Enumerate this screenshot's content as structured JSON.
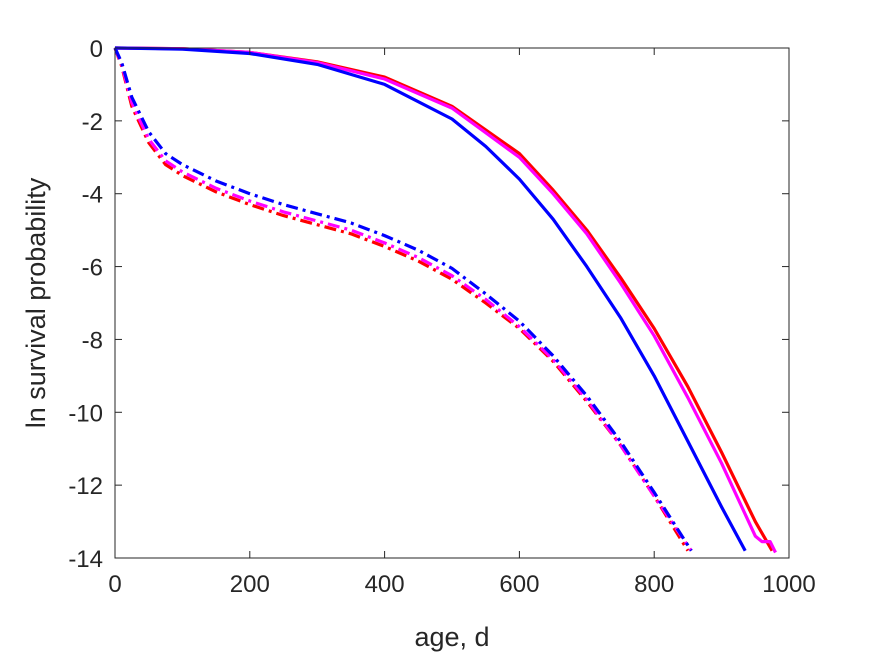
{
  "chart_data": {
    "type": "line",
    "xlabel": "age, d",
    "ylabel": "ln survival probability",
    "xlim": [
      0,
      1000
    ],
    "ylim": [
      -14,
      0
    ],
    "xticks": [
      0,
      200,
      400,
      600,
      800,
      1000
    ],
    "yticks": [
      0,
      -2,
      -4,
      -6,
      -8,
      -10,
      -12,
      -14
    ],
    "xtick_labels": [
      "0",
      "200",
      "400",
      "600",
      "800",
      "1000"
    ],
    "ytick_labels": [
      "0",
      "-2",
      "-4",
      "-6",
      "-8",
      "-10",
      "-12",
      "-14"
    ],
    "grid": false,
    "series": [
      {
        "color": "#ff0000",
        "style": "solid",
        "x": [
          0,
          100,
          200,
          300,
          400,
          500,
          600,
          650,
          700,
          750,
          800,
          850,
          900,
          950,
          975
        ],
        "y": [
          0,
          -0.02,
          -0.12,
          -0.38,
          -0.8,
          -1.6,
          -2.9,
          -3.9,
          -5.0,
          -6.3,
          -7.7,
          -9.3,
          -11.1,
          -13.0,
          -13.8
        ]
      },
      {
        "color": "#ff00ff",
        "style": "solid",
        "x": [
          0,
          100,
          200,
          300,
          400,
          500,
          600,
          650,
          700,
          750,
          800,
          850,
          900,
          950,
          960,
          972,
          980
        ],
        "y": [
          0,
          -0.02,
          -0.12,
          -0.4,
          -0.85,
          -1.65,
          -3.0,
          -4.0,
          -5.1,
          -6.45,
          -7.9,
          -9.6,
          -11.4,
          -13.4,
          -13.55,
          -13.55,
          -13.85
        ]
      },
      {
        "color": "#0000ff",
        "style": "solid",
        "x": [
          0,
          100,
          200,
          300,
          400,
          500,
          550,
          600,
          650,
          700,
          750,
          800,
          850,
          900,
          935
        ],
        "y": [
          0,
          -0.03,
          -0.15,
          -0.45,
          -1.0,
          -1.95,
          -2.7,
          -3.6,
          -4.7,
          -6.0,
          -7.4,
          -9.0,
          -10.8,
          -12.6,
          -13.8
        ]
      },
      {
        "color": "#ff0000",
        "style": "dashdot",
        "x": [
          0,
          10,
          25,
          50,
          75,
          100,
          150,
          200,
          250,
          300,
          350,
          400,
          450,
          500,
          550,
          600,
          650,
          700,
          750,
          800,
          850
        ],
        "y": [
          0,
          -0.5,
          -1.6,
          -2.6,
          -3.2,
          -3.5,
          -3.95,
          -4.3,
          -4.6,
          -4.85,
          -5.1,
          -5.45,
          -5.85,
          -6.35,
          -7.0,
          -7.7,
          -8.6,
          -9.7,
          -10.9,
          -12.3,
          -13.8
        ]
      },
      {
        "color": "#ff00ff",
        "style": "dashdot",
        "x": [
          0,
          10,
          25,
          50,
          75,
          100,
          150,
          200,
          250,
          300,
          350,
          400,
          450,
          500,
          550,
          600,
          650,
          700,
          750,
          800,
          855
        ],
        "y": [
          0,
          -0.45,
          -1.5,
          -2.5,
          -3.1,
          -3.4,
          -3.85,
          -4.2,
          -4.5,
          -4.75,
          -5.0,
          -5.35,
          -5.75,
          -6.25,
          -6.9,
          -7.65,
          -8.55,
          -9.65,
          -10.9,
          -12.3,
          -13.8
        ]
      },
      {
        "color": "#0000ff",
        "style": "dashdot",
        "x": [
          0,
          10,
          25,
          50,
          75,
          100,
          150,
          200,
          250,
          300,
          350,
          400,
          450,
          500,
          550,
          600,
          650,
          700,
          750,
          800,
          855
        ],
        "y": [
          0,
          -0.4,
          -1.35,
          -2.3,
          -2.9,
          -3.2,
          -3.65,
          -4.0,
          -4.3,
          -4.55,
          -4.8,
          -5.15,
          -5.55,
          -6.05,
          -6.75,
          -7.5,
          -8.45,
          -9.55,
          -10.8,
          -12.2,
          -13.8
        ]
      }
    ]
  }
}
